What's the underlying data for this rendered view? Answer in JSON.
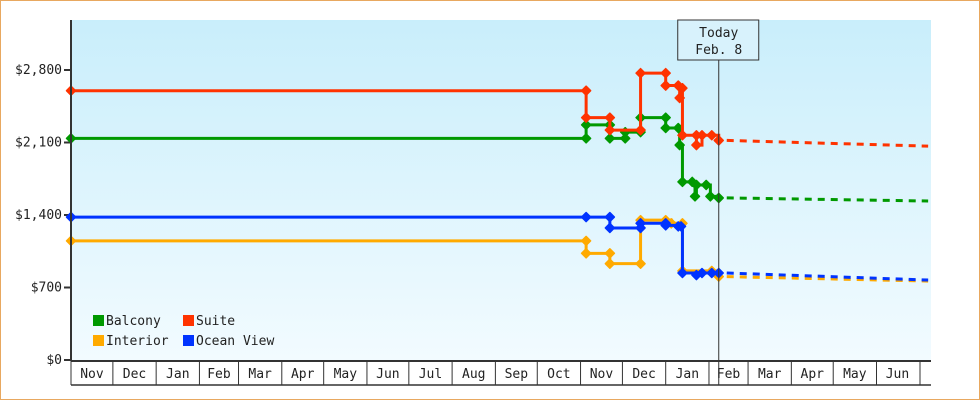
{
  "chart_data": {
    "type": "line",
    "title": "",
    "xlabel": "",
    "ylabel": "",
    "ylim": [
      0,
      3000
    ],
    "y_ticks": [
      "$0",
      "$700",
      "$1,400",
      "$2,100",
      "$2,800"
    ],
    "y_tick_values": [
      0,
      700,
      1400,
      2100,
      2800
    ],
    "x_range": [
      "2024-11-01",
      "2026-07-08"
    ],
    "x_ticks": [
      {
        "label": "Nov",
        "start": "2024-11-01"
      },
      {
        "label": "Dec",
        "start": "2024-12-01"
      },
      {
        "label": "Jan",
        "start": "2025-01-01"
      },
      {
        "label": "Feb",
        "start": "2025-02-01"
      },
      {
        "label": "Mar",
        "start": "2025-03-01"
      },
      {
        "label": "Apr",
        "start": "2025-04-01"
      },
      {
        "label": "May",
        "start": "2025-05-01"
      },
      {
        "label": "Jun",
        "start": "2025-06-01"
      },
      {
        "label": "Jul",
        "start": "2025-07-01"
      },
      {
        "label": "Aug",
        "start": "2025-08-01"
      },
      {
        "label": "Sep",
        "start": "2025-09-01"
      },
      {
        "label": "Oct",
        "start": "2025-10-01"
      },
      {
        "label": "Nov",
        "start": "2025-11-01"
      },
      {
        "label": "Dec",
        "start": "2025-12-01"
      },
      {
        "label": "Jan",
        "start": "2026-01-01"
      },
      {
        "label": "Feb",
        "start": "2026-02-01"
      },
      {
        "label": "Mar",
        "start": "2026-03-01"
      },
      {
        "label": "Apr",
        "start": "2026-04-01"
      },
      {
        "label": "May",
        "start": "2026-05-01"
      },
      {
        "label": "Jun",
        "start": "2026-06-01"
      }
    ],
    "today": {
      "date": "2026-02-08",
      "line1": "Today",
      "line2": "Feb. 8"
    },
    "grid": false,
    "legend_placement": "bottom-left",
    "series": [
      {
        "name": "Balcony",
        "color": "#009900",
        "points": [
          [
            "2024-11-01",
            2140
          ],
          [
            "2025-11-05",
            2140
          ],
          [
            "2025-11-05",
            2270
          ],
          [
            "2025-11-22",
            2270
          ],
          [
            "2025-11-22",
            2140
          ],
          [
            "2025-12-03",
            2140
          ],
          [
            "2025-12-03",
            2200
          ],
          [
            "2025-12-14",
            2200
          ],
          [
            "2025-12-14",
            2340
          ],
          [
            "2026-01-01",
            2340
          ],
          [
            "2026-01-01",
            2240
          ],
          [
            "2026-01-10",
            2240
          ],
          [
            "2026-01-11",
            2075
          ],
          [
            "2026-01-13",
            1720
          ],
          [
            "2026-01-20",
            1720
          ],
          [
            "2026-01-22",
            1580
          ],
          [
            "2026-01-23",
            1690
          ],
          [
            "2026-01-30",
            1690
          ],
          [
            "2026-02-02",
            1580
          ],
          [
            "2026-02-08",
            1565
          ]
        ],
        "forecast": [
          [
            "2026-02-08",
            1565
          ],
          [
            "2026-07-08",
            1535
          ]
        ]
      },
      {
        "name": "Suite",
        "color": "#ff3300",
        "points": [
          [
            "2024-11-01",
            2600
          ],
          [
            "2025-11-05",
            2600
          ],
          [
            "2025-11-05",
            2340
          ],
          [
            "2025-11-22",
            2340
          ],
          [
            "2025-11-22",
            2220
          ],
          [
            "2025-12-14",
            2220
          ],
          [
            "2025-12-14",
            2770
          ],
          [
            "2026-01-01",
            2770
          ],
          [
            "2026-01-01",
            2650
          ],
          [
            "2026-01-10",
            2650
          ],
          [
            "2026-01-11",
            2530
          ],
          [
            "2026-01-13",
            2625
          ],
          [
            "2026-01-13",
            2170
          ],
          [
            "2026-01-23",
            2170
          ],
          [
            "2026-01-23",
            2075
          ],
          [
            "2026-01-27",
            2170
          ],
          [
            "2026-02-03",
            2170
          ],
          [
            "2026-02-08",
            2120
          ]
        ],
        "forecast": [
          [
            "2026-02-08",
            2120
          ],
          [
            "2026-07-08",
            2065
          ]
        ]
      },
      {
        "name": "Interior",
        "color": "#ffaa00",
        "points": [
          [
            "2024-11-01",
            1150
          ],
          [
            "2025-11-05",
            1150
          ],
          [
            "2025-11-05",
            1030
          ],
          [
            "2025-11-22",
            1030
          ],
          [
            "2025-11-22",
            930
          ],
          [
            "2025-12-14",
            930
          ],
          [
            "2025-12-14",
            1350
          ],
          [
            "2026-01-01",
            1350
          ],
          [
            "2026-01-05",
            1320
          ],
          [
            "2026-01-13",
            1320
          ],
          [
            "2026-01-13",
            860
          ],
          [
            "2026-02-03",
            860
          ],
          [
            "2026-02-08",
            805
          ]
        ],
        "forecast": [
          [
            "2026-02-08",
            805
          ],
          [
            "2026-07-08",
            762
          ]
        ]
      },
      {
        "name": "Ocean View",
        "color": "#0033ff",
        "points": [
          [
            "2024-11-01",
            1380
          ],
          [
            "2025-11-05",
            1380
          ],
          [
            "2025-11-22",
            1380
          ],
          [
            "2025-11-22",
            1275
          ],
          [
            "2025-12-14",
            1275
          ],
          [
            "2025-12-14",
            1320
          ],
          [
            "2026-01-01",
            1320
          ],
          [
            "2026-01-01",
            1300
          ],
          [
            "2026-01-10",
            1290
          ],
          [
            "2026-01-12",
            1290
          ],
          [
            "2026-01-13",
            840
          ],
          [
            "2026-01-23",
            820
          ],
          [
            "2026-01-27",
            840
          ],
          [
            "2026-02-03",
            840
          ],
          [
            "2026-02-08",
            840
          ]
        ],
        "forecast": [
          [
            "2026-02-08",
            840
          ],
          [
            "2026-07-08",
            772
          ]
        ]
      }
    ]
  }
}
